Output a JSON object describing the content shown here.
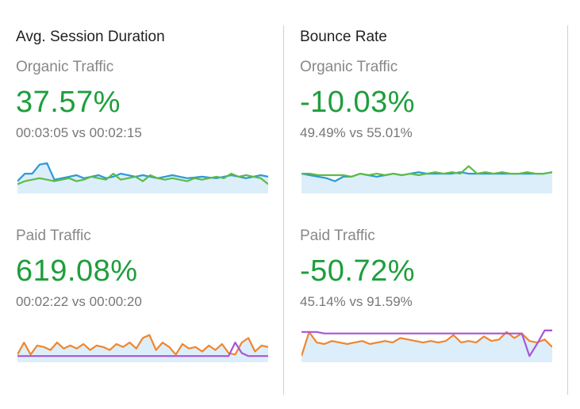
{
  "columns": [
    {
      "title": "Avg. Session Duration",
      "metrics": [
        {
          "segment": "Organic Traffic",
          "change": "37.57%",
          "comparison": "00:03:05 vs 00:02:15",
          "series": [
            {
              "color": "#2b9ad6",
              "values": [
                0.3,
                0.55,
                0.55,
                0.85,
                0.9,
                0.35,
                0.4,
                0.45,
                0.5,
                0.4,
                0.45,
                0.5,
                0.4,
                0.45,
                0.55,
                0.5,
                0.45,
                0.5,
                0.45,
                0.4,
                0.45,
                0.5,
                0.45,
                0.4,
                0.42,
                0.45,
                0.42,
                0.4,
                0.45,
                0.5,
                0.45,
                0.4,
                0.45,
                0.5,
                0.45
              ]
            },
            {
              "color": "#5dbb46",
              "values": [
                0.2,
                0.3,
                0.35,
                0.4,
                0.35,
                0.3,
                0.35,
                0.4,
                0.3,
                0.35,
                0.45,
                0.4,
                0.35,
                0.55,
                0.35,
                0.4,
                0.45,
                0.3,
                0.5,
                0.4,
                0.35,
                0.4,
                0.35,
                0.3,
                0.4,
                0.35,
                0.4,
                0.45,
                0.4,
                0.55,
                0.45,
                0.5,
                0.45,
                0.4,
                0.2
              ]
            }
          ],
          "baseline_color": "#dceefa"
        },
        {
          "segment": "Paid Traffic",
          "change": "619.08%",
          "comparison": "00:02:22 vs 00:00:20",
          "series": [
            {
              "color": "#f0862c",
              "values": [
                0.15,
                0.55,
                0.15,
                0.45,
                0.4,
                0.3,
                0.55,
                0.35,
                0.45,
                0.35,
                0.5,
                0.3,
                0.45,
                0.4,
                0.3,
                0.5,
                0.4,
                0.55,
                0.35,
                0.7,
                0.8,
                0.3,
                0.55,
                0.4,
                0.15,
                0.5,
                0.35,
                0.4,
                0.25,
                0.45,
                0.3,
                0.5,
                0.2,
                0.15,
                0.55,
                0.7,
                0.25,
                0.45,
                0.4
              ]
            },
            {
              "color": "#a855d6",
              "values": [
                0.1,
                0.1,
                0.1,
                0.1,
                0.1,
                0.1,
                0.1,
                0.1,
                0.1,
                0.1,
                0.1,
                0.1,
                0.1,
                0.1,
                0.1,
                0.1,
                0.1,
                0.1,
                0.1,
                0.1,
                0.1,
                0.1,
                0.1,
                0.1,
                0.1,
                0.1,
                0.1,
                0.1,
                0.1,
                0.1,
                0.1,
                0.1,
                0.1,
                0.55,
                0.2,
                0.1,
                0.1,
                0.1,
                0.1
              ]
            }
          ],
          "baseline_color": "#dceefa"
        }
      ]
    },
    {
      "title": "Bounce Rate",
      "metrics": [
        {
          "segment": "Organic Traffic",
          "change": "-10.03%",
          "comparison": "49.49% vs 55.01%",
          "series": [
            {
              "color": "#2b9ad6",
              "values": [
                0.55,
                0.5,
                0.45,
                0.4,
                0.3,
                0.45,
                0.45,
                0.55,
                0.5,
                0.45,
                0.5,
                0.55,
                0.5,
                0.55,
                0.6,
                0.55,
                0.55,
                0.55,
                0.55,
                0.6,
                0.55,
                0.55,
                0.55,
                0.55,
                0.55,
                0.55,
                0.55,
                0.55,
                0.55,
                0.55,
                0.6
              ]
            },
            {
              "color": "#5dbb46",
              "values": [
                0.55,
                0.55,
                0.5,
                0.5,
                0.5,
                0.5,
                0.45,
                0.55,
                0.5,
                0.55,
                0.5,
                0.55,
                0.5,
                0.55,
                0.5,
                0.55,
                0.6,
                0.55,
                0.6,
                0.55,
                0.8,
                0.55,
                0.6,
                0.55,
                0.6,
                0.55,
                0.55,
                0.6,
                0.55,
                0.55,
                0.6
              ]
            }
          ],
          "baseline_color": "#dceefa"
        },
        {
          "segment": "Paid Traffic",
          "change": "-50.72%",
          "comparison": "45.14% vs 91.59%",
          "series": [
            {
              "color": "#f0862c",
              "values": [
                0.1,
                0.9,
                0.55,
                0.5,
                0.6,
                0.55,
                0.5,
                0.55,
                0.6,
                0.5,
                0.55,
                0.6,
                0.55,
                0.7,
                0.65,
                0.6,
                0.55,
                0.6,
                0.55,
                0.6,
                0.8,
                0.55,
                0.6,
                0.55,
                0.75,
                0.6,
                0.65,
                0.9,
                0.7,
                0.85,
                0.6,
                0.55,
                0.65,
                0.4
              ]
            },
            {
              "color": "#a855d6",
              "values": [
                0.9,
                0.9,
                0.9,
                0.85,
                0.85,
                0.85,
                0.85,
                0.85,
                0.85,
                0.85,
                0.85,
                0.85,
                0.85,
                0.85,
                0.85,
                0.85,
                0.85,
                0.85,
                0.85,
                0.85,
                0.85,
                0.85,
                0.85,
                0.85,
                0.85,
                0.85,
                0.85,
                0.85,
                0.85,
                0.85,
                0.1,
                0.5,
                0.95,
                0.95
              ]
            }
          ],
          "baseline_color": "#dceefa"
        }
      ]
    }
  ]
}
